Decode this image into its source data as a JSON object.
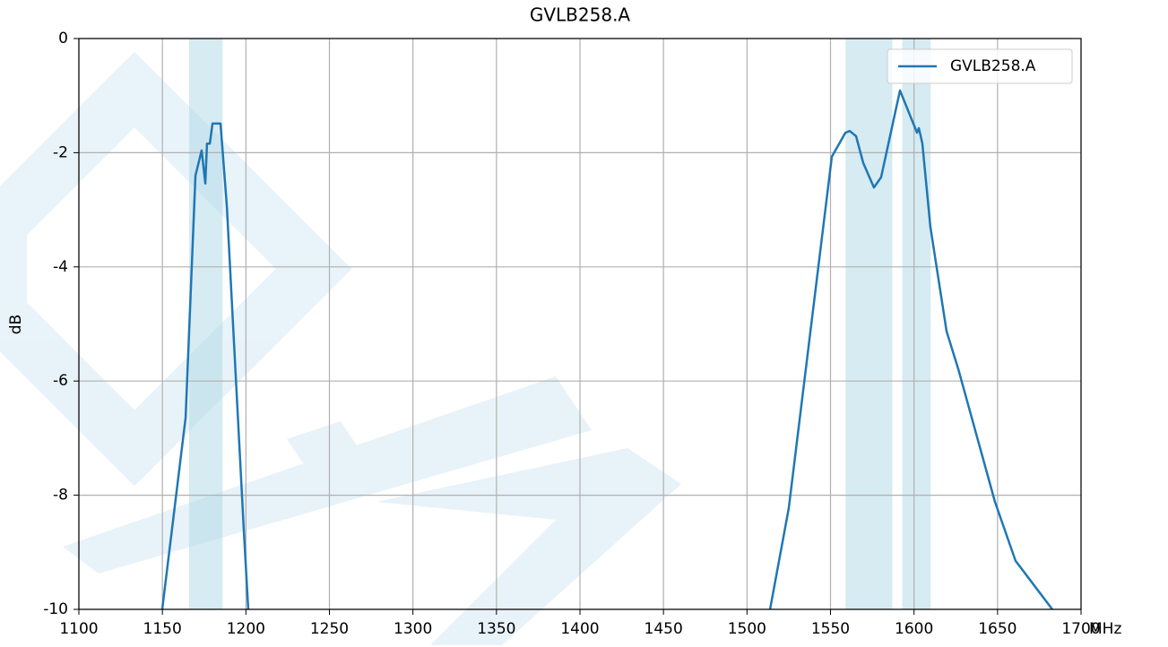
{
  "chart_data": {
    "type": "line",
    "title": "GVLB258.A",
    "xlabel": "MHz",
    "ylabel": "dB",
    "xlim": [
      1100,
      1700
    ],
    "xticks": [
      1100,
      1150,
      1200,
      1250,
      1300,
      1350,
      1400,
      1450,
      1500,
      1550,
      1600,
      1650,
      1700
    ],
    "ylim": [
      -10,
      0
    ],
    "yticks": [
      0,
      -2,
      -4,
      -6,
      -8,
      -10
    ],
    "grid": true,
    "legend": "upper right",
    "bands": [
      [
        1166,
        1186
      ],
      [
        1559,
        1587
      ],
      [
        1593,
        1610
      ]
    ],
    "band_color": "#add8e6",
    "x": [
      1149.9,
      1163.9,
      1169.8,
      1173.5,
      1175.7,
      1176.7,
      1178.4,
      1180,
      1184.8,
      1188.6,
      1198.7,
      1201.4,
      null,
      1513.8,
      1525,
      1550.8,
      1558.9,
      1561.5,
      1565.3,
      1569.6,
      1576,
      1580.3,
      1591.6,
      1601.8,
      1602.9,
      1605,
      1609.8,
      1619.5,
      1626.5,
      1648.5,
      1660.8,
      1682.8
    ],
    "series": [
      {
        "name": "GVLB258.A",
        "color": "#1f77b4",
        "values": [
          -10,
          -6.64,
          -2.4,
          -1.96,
          -2.54,
          -1.84,
          -1.84,
          -1.49,
          -1.49,
          -2.94,
          -8.59,
          -10,
          null,
          -10,
          -8.23,
          -2.07,
          -1.65,
          -1.62,
          -1.71,
          -2.18,
          -2.61,
          -2.43,
          -0.91,
          -1.65,
          -1.57,
          -1.84,
          -3.3,
          -5.13,
          -5.79,
          -8.12,
          -9.15,
          -10
        ]
      }
    ]
  }
}
